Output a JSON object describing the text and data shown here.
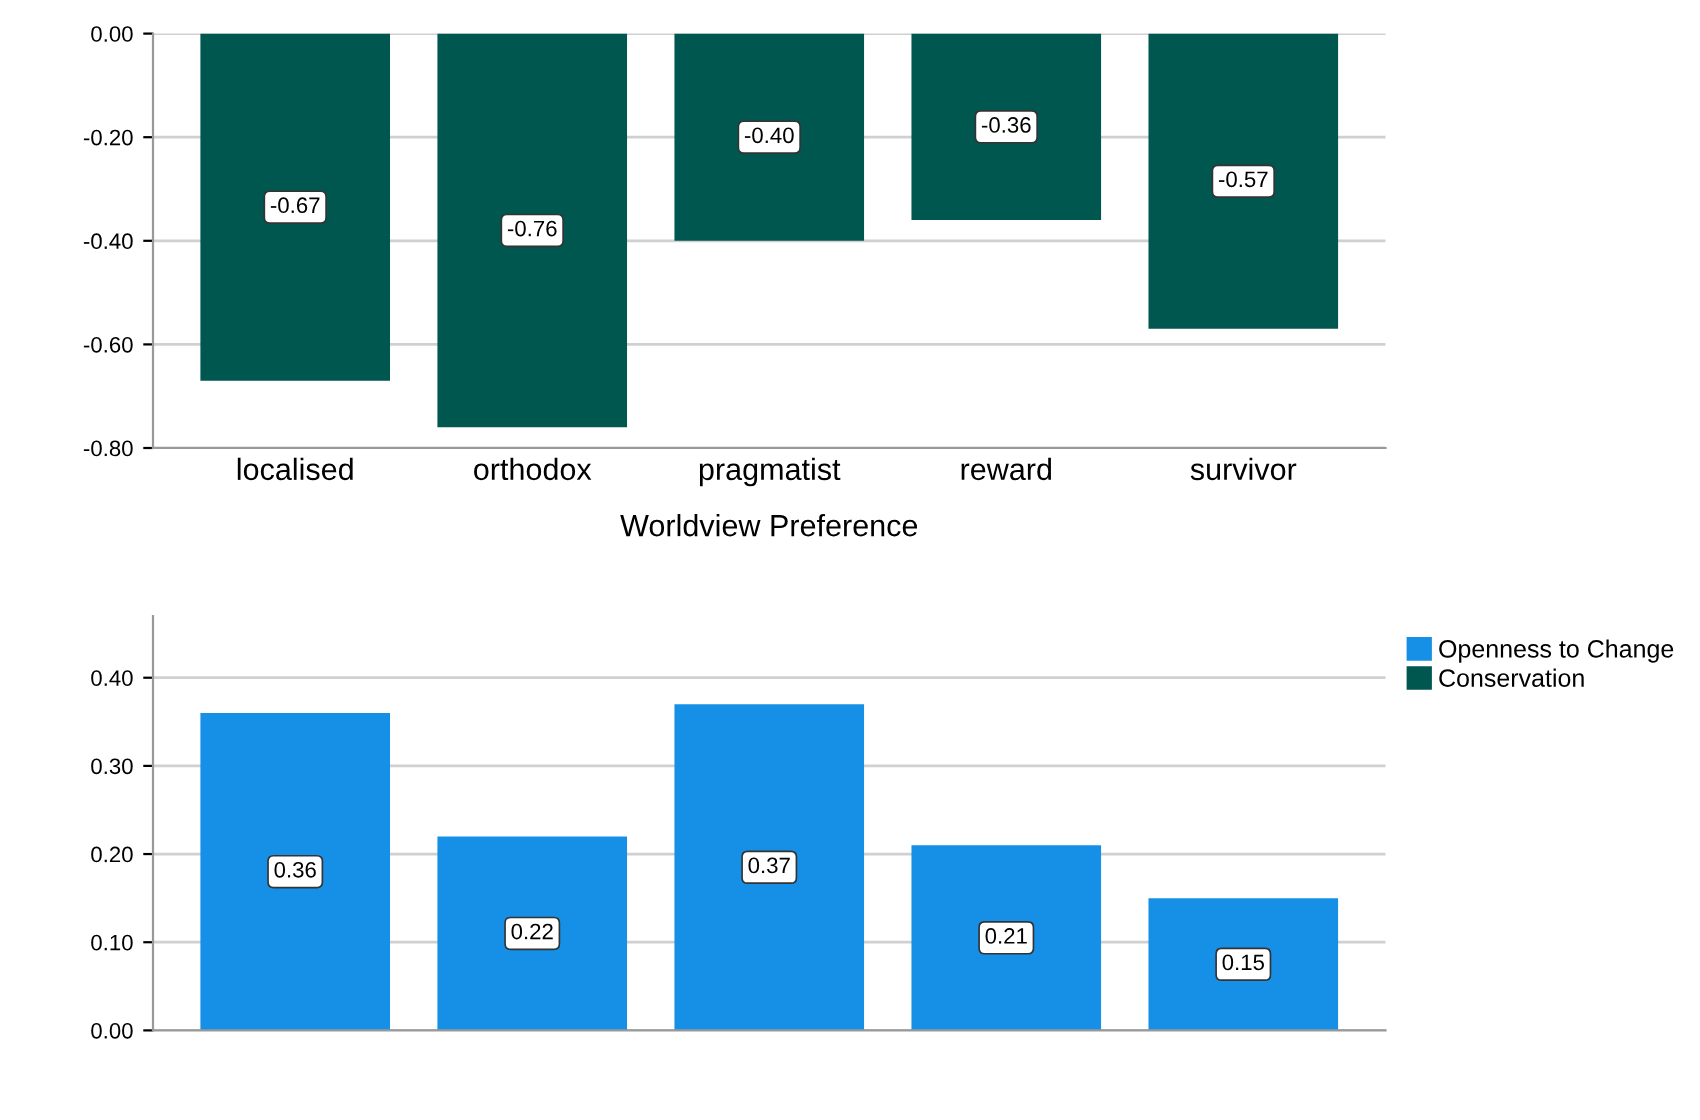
{
  "chart_data": [
    {
      "type": "bar",
      "xlabel": "Worldview Preference",
      "categories": [
        "localised",
        "orthodox",
        "pragmatist",
        "reward",
        "survivor"
      ],
      "series": [
        {
          "name": "Conservation",
          "color": "#00574f",
          "values": [
            -0.67,
            -0.76,
            -0.4,
            -0.36,
            -0.57
          ],
          "value_labels": [
            "-0.67",
            "-0.76",
            "-0.40",
            "-0.36",
            "-0.57"
          ]
        }
      ],
      "ylim": [
        -0.8,
        0.0
      ],
      "yticks": [
        {
          "value": -0.8,
          "label": "-0.80"
        },
        {
          "value": -0.6,
          "label": "-0.60"
        },
        {
          "value": -0.4,
          "label": "-0.40"
        },
        {
          "value": -0.2,
          "label": "-0.20"
        },
        {
          "value": 0.0,
          "label": "0.00"
        }
      ],
      "grid": "y",
      "legend": "right"
    },
    {
      "type": "bar",
      "categories": [
        null,
        null,
        null,
        null,
        null
      ],
      "series": [
        {
          "name": "Openness to Change",
          "color": "#1690e6",
          "values": [
            0.36,
            0.22,
            0.37,
            0.21,
            0.15
          ],
          "value_labels": [
            "0.36",
            "0.22",
            "0.37",
            "0.21",
            "0.15"
          ]
        }
      ],
      "ylim": [
        0.0,
        0.47
      ],
      "yticks": [
        {
          "value": 0.0,
          "label": "0.00"
        },
        {
          "value": 0.1,
          "label": "0.10"
        },
        {
          "value": 0.2,
          "label": "0.20"
        },
        {
          "value": 0.3,
          "label": "0.30"
        },
        {
          "value": 0.4,
          "label": "0.40"
        }
      ],
      "grid": "y",
      "legend": "top right"
    }
  ]
}
